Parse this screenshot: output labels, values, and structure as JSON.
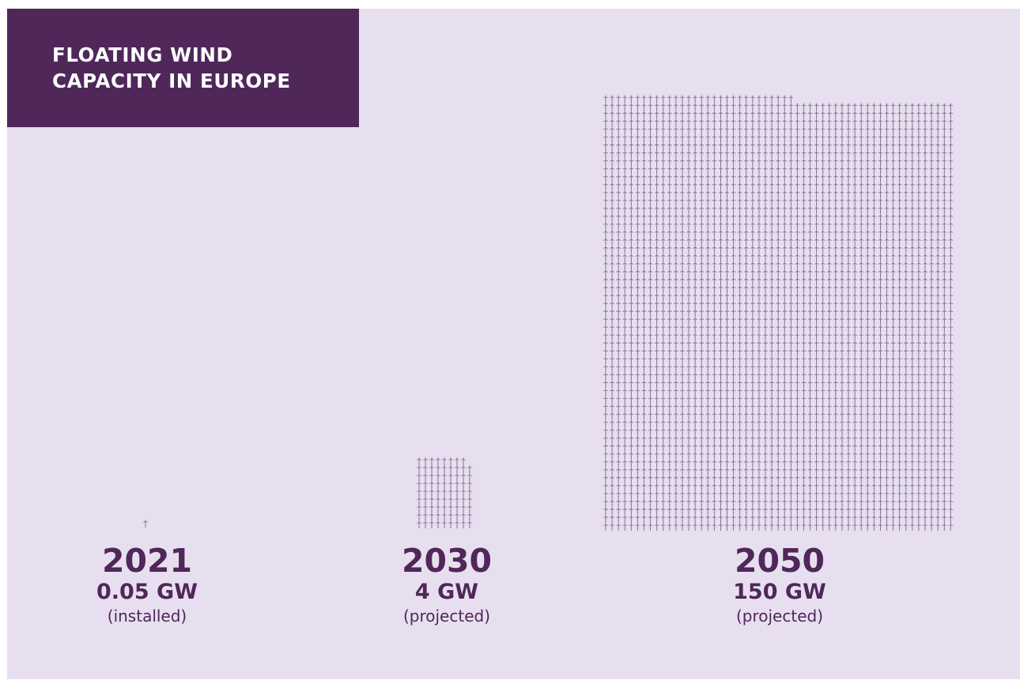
{
  "title": {
    "line1": "FLOATING WIND",
    "line2": "CAPACITY IN EUROPE"
  },
  "colors": {
    "panel_background": "#e7dff0",
    "accent": "#4f2759",
    "turbine_icon": "#7a6384"
  },
  "icon": "wind-turbine-icon",
  "chart_data": {
    "type": "pictogram",
    "title": "FLOATING WIND CAPACITY IN EUROPE",
    "unit": "GW",
    "categories": [
      "2021",
      "2030",
      "2050"
    ],
    "values": [
      0.05,
      4,
      150
    ],
    "value_labels": [
      "0.05 GW",
      "4 GW",
      "150 GW"
    ],
    "status_labels": [
      "(installed)",
      "(projected)",
      "(projected)"
    ],
    "icon_value_gw": 0.05,
    "icon_counts": [
      1,
      80,
      3000
    ]
  }
}
